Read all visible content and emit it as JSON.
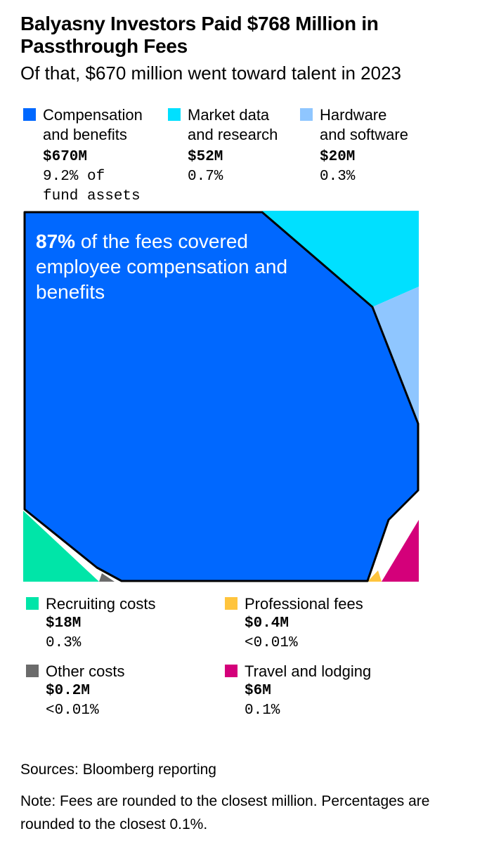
{
  "header": {
    "title": "Balyasny Investors Paid $768 Million in Passthrough Fees",
    "subtitle": "Of that, $670 million went toward talent in 2023"
  },
  "legend_top": [
    {
      "label": "Compensation\nand benefits",
      "value": "$670M",
      "pct": "9.2% of\nfund assets",
      "color": "#0068ff"
    },
    {
      "label": "Market data\nand research",
      "value": "$52M",
      "pct": "0.7%",
      "color": "#00e0ff"
    },
    {
      "label": "Hardware\nand software",
      "value": "$20M",
      "pct": "0.3%",
      "color": "#8fc6ff"
    }
  ],
  "legend_bottom": [
    {
      "label": "Recruiting costs",
      "value": "$18M",
      "pct": "0.3%",
      "color": "#00e5a8"
    },
    {
      "label": "Professional fees",
      "value": "$0.4M",
      "pct": "<0.01%",
      "color": "#ffc43d"
    },
    {
      "label": "Other costs",
      "value": "$0.2M",
      "pct": "<0.01%",
      "color": "#6b6b6b"
    },
    {
      "label": "Travel and lodging",
      "value": "$6M",
      "pct": "0.1%",
      "color": "#d4007a"
    }
  ],
  "callout": {
    "bold": "87%",
    "text": " of the fees covered employee compensation and benefits"
  },
  "footer": {
    "sources": "Sources: Bloomberg reporting",
    "note": "Note: Fees are rounded to the closest million. Percentages are rounded to the closest 0.1%."
  },
  "chart_data": {
    "type": "treemap",
    "unit": "$M",
    "categories": [
      "Compensation and benefits",
      "Market data and research",
      "Hardware and software",
      "Recruiting costs",
      "Professional fees",
      "Other costs",
      "Travel and lodging"
    ],
    "values": [
      670,
      52,
      20,
      18,
      0.4,
      0.2,
      6
    ],
    "percent_of_fund_assets": [
      "9.2%",
      "0.7%",
      "0.3%",
      "0.3%",
      "<0.01%",
      "<0.01%",
      "0.1%"
    ],
    "colors": [
      "#0068ff",
      "#00e0ff",
      "#8fc6ff",
      "#00e5a8",
      "#ffc43d",
      "#6b6b6b",
      "#d4007a"
    ]
  }
}
